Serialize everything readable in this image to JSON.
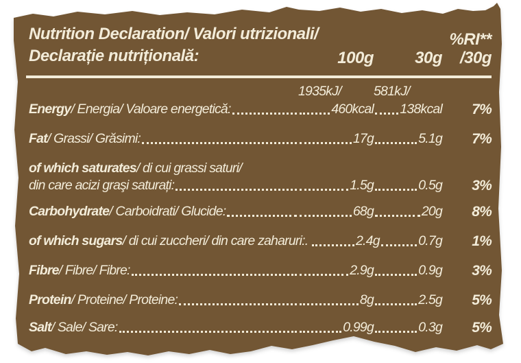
{
  "page": {
    "background_color": "#ffffff"
  },
  "label": {
    "background_color": "#725634",
    "text_color": "#f3ecd9",
    "title_line1": "Nutrition Declaration/ Valori utrizionali/",
    "title_line2": "Declarație nutrițională:",
    "col_headers": {
      "per_100g": "100g",
      "per_30g": "30g",
      "ri_top": "%RI**",
      "ri_bottom": "/30g"
    },
    "rows": [
      {
        "type": "values-only",
        "v100": "1935kJ/",
        "v30": "581kJ/",
        "ri": ""
      },
      {
        "type": "standard",
        "term": "Energy",
        "rest": "/ Energia/ Valoare energetică: ",
        "v100": "460kcal",
        "v30": "138kcal",
        "ri": "7%"
      },
      {
        "type": "standard",
        "term": "Fat",
        "rest": "/ Grassi/ Grăsimi:",
        "v100": "17g",
        "v30": "5.1g",
        "ri": "7%"
      },
      {
        "type": "two-line",
        "term": "of which saturates",
        "rest": "/ di cui grassi saturi/",
        "line2": "din care acizi graşi saturați:",
        "v100": "1.5g",
        "v30": "0.5g",
        "ri": "3%"
      },
      {
        "type": "standard",
        "term": "Carbohydrate",
        "rest": "/ Carboidrati/ Glucide: ",
        "v100": "68g",
        "v30": "20g",
        "ri": "8%"
      },
      {
        "type": "standard",
        "term": "of which sugars",
        "rest": "/ di cui zuccheri/ din care zaharuri:.",
        "v100": "2.4g",
        "v30": "0.7g",
        "ri": "1%"
      },
      {
        "type": "standard",
        "term": "Fibre",
        "rest": "/ Fibre/ Fibre:",
        "v100": "2.9g",
        "v30": "0.9g",
        "ri": "3%"
      },
      {
        "type": "standard",
        "term": "Protein",
        "rest": "/ Proteine/ Proteine:",
        "v100": "8g",
        "v30": "2.5g",
        "ri": "5%"
      },
      {
        "type": "standard",
        "term": "Salt",
        "rest": "/ Sale/ Sare:",
        "v100": "0.99g",
        "v30": "0.3g",
        "ri": "5%"
      }
    ]
  }
}
